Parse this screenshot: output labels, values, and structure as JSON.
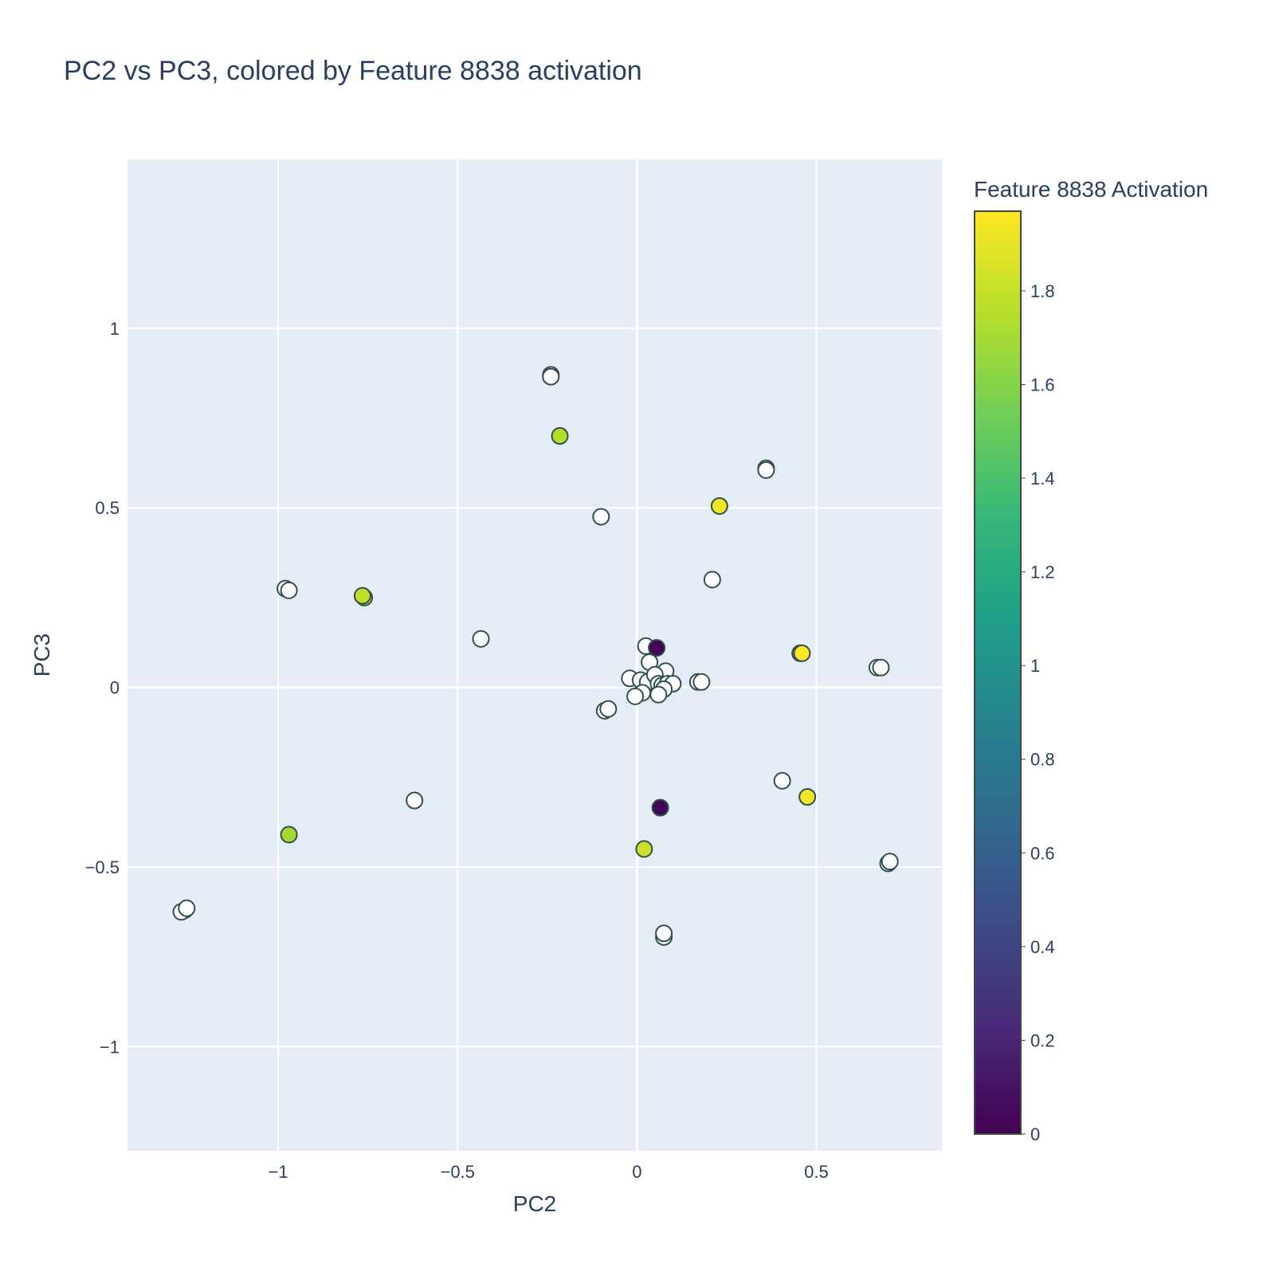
{
  "chart_data": {
    "type": "scatter",
    "title": "PC2 vs PC3, colored by Feature 8838 activation",
    "xlabel": "PC2",
    "ylabel": "PC3",
    "xlim": [
      -1.42,
      0.85
    ],
    "ylim": [
      -1.29,
      1.47
    ],
    "xticks": [
      {
        "value": -1,
        "label": "−1"
      },
      {
        "value": -0.5,
        "label": "−0.5"
      },
      {
        "value": 0,
        "label": "0"
      },
      {
        "value": 0.5,
        "label": "0.5"
      }
    ],
    "yticks": [
      {
        "value": -1,
        "label": "−1"
      },
      {
        "value": -0.5,
        "label": "−0.5"
      },
      {
        "value": 0,
        "label": "0"
      },
      {
        "value": 0.5,
        "label": "0.5"
      },
      {
        "value": 1,
        "label": "1"
      }
    ],
    "grid": true,
    "colorbar": {
      "title": "Feature 8838 Activation",
      "colorscale": "Viridis",
      "range": [
        0,
        1.97
      ],
      "ticks": [
        {
          "value": 0,
          "label": "0"
        },
        {
          "value": 0.2,
          "label": "0.2"
        },
        {
          "value": 0.4,
          "label": "0.4"
        },
        {
          "value": 0.6,
          "label": "0.6"
        },
        {
          "value": 0.8,
          "label": "0.8"
        },
        {
          "value": 1,
          "label": "1"
        },
        {
          "value": 1.2,
          "label": "1.2"
        },
        {
          "value": 1.4,
          "label": "1.4"
        },
        {
          "value": 1.6,
          "label": "1.6"
        },
        {
          "value": 1.8,
          "label": "1.8"
        }
      ]
    },
    "colors": {
      "plot_bg": "#e5ecf6",
      "grid": "#ffffff",
      "text": "#2a3f5f",
      "marker_outline": "#2f4f4f",
      "zero_value_fill": "#ffffff"
    },
    "points": [
      {
        "x": -0.24,
        "y": 0.87,
        "c": 0
      },
      {
        "x": -0.24,
        "y": 0.865,
        "c": 0
      },
      {
        "x": 0.36,
        "y": 0.61,
        "c": 0
      },
      {
        "x": 0.36,
        "y": 0.605,
        "c": 0
      },
      {
        "x": -0.1,
        "y": 0.475,
        "c": 0
      },
      {
        "x": 0.21,
        "y": 0.3,
        "c": 0
      },
      {
        "x": -0.98,
        "y": 0.275,
        "c": 0
      },
      {
        "x": -0.97,
        "y": 0.27,
        "c": 0
      },
      {
        "x": -0.435,
        "y": 0.135,
        "c": 0
      },
      {
        "x": 0.025,
        "y": 0.115,
        "c": 0
      },
      {
        "x": 0.035,
        "y": 0.07,
        "c": 0
      },
      {
        "x": 0.08,
        "y": 0.045,
        "c": 0
      },
      {
        "x": -0.02,
        "y": 0.025,
        "c": 0
      },
      {
        "x": 0.01,
        "y": 0.02,
        "c": 0
      },
      {
        "x": 0.03,
        "y": 0.015,
        "c": 0
      },
      {
        "x": 0.05,
        "y": 0.035,
        "c": 0
      },
      {
        "x": 0.06,
        "y": 0.01,
        "c": 0
      },
      {
        "x": 0.07,
        "y": 0.005,
        "c": 0
      },
      {
        "x": 0.085,
        "y": 0.01,
        "c": 0
      },
      {
        "x": 0.1,
        "y": 0.01,
        "c": 0
      },
      {
        "x": 0.075,
        "y": -0.005,
        "c": 0
      },
      {
        "x": 0.06,
        "y": -0.02,
        "c": 0
      },
      {
        "x": 0.015,
        "y": -0.015,
        "c": 0
      },
      {
        "x": -0.005,
        "y": -0.025,
        "c": 0
      },
      {
        "x": 0.17,
        "y": 0.015,
        "c": 0
      },
      {
        "x": 0.18,
        "y": 0.015,
        "c": 0
      },
      {
        "x": -0.09,
        "y": -0.065,
        "c": 0
      },
      {
        "x": -0.08,
        "y": -0.06,
        "c": 0
      },
      {
        "x": 0.67,
        "y": 0.055,
        "c": 0
      },
      {
        "x": 0.68,
        "y": 0.055,
        "c": 0
      },
      {
        "x": 0.405,
        "y": -0.26,
        "c": 0
      },
      {
        "x": -0.62,
        "y": -0.315,
        "c": 0
      },
      {
        "x": 0.7,
        "y": -0.49,
        "c": 0
      },
      {
        "x": 0.705,
        "y": -0.485,
        "c": 0
      },
      {
        "x": 0.075,
        "y": -0.695,
        "c": 0
      },
      {
        "x": 0.075,
        "y": -0.685,
        "c": 0
      },
      {
        "x": -1.26,
        "y": -0.62,
        "c": 0
      },
      {
        "x": -1.27,
        "y": -0.625,
        "c": 0
      },
      {
        "x": -1.255,
        "y": -0.615,
        "c": 0
      },
      {
        "x": 0.055,
        "y": 0.11,
        "c": 0.02
      },
      {
        "x": 0.065,
        "y": -0.335,
        "c": 0.02
      },
      {
        "x": -0.215,
        "y": 0.7,
        "c": 1.75
      },
      {
        "x": 0.23,
        "y": 0.505,
        "c": 1.92
      },
      {
        "x": -0.76,
        "y": 0.25,
        "c": 1.78
      },
      {
        "x": -0.765,
        "y": 0.255,
        "c": 1.78
      },
      {
        "x": 0.455,
        "y": 0.095,
        "c": 1.97
      },
      {
        "x": 0.46,
        "y": 0.095,
        "c": 1.97
      },
      {
        "x": 0.475,
        "y": -0.305,
        "c": 1.93
      },
      {
        "x": -0.97,
        "y": -0.41,
        "c": 1.7
      },
      {
        "x": 0.02,
        "y": -0.45,
        "c": 1.82
      }
    ]
  }
}
